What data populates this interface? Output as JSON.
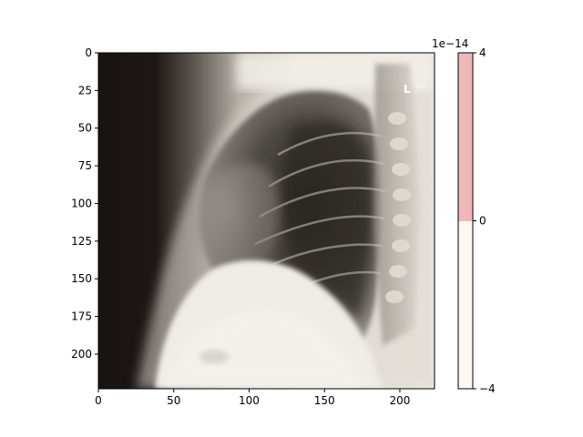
{
  "image": {
    "subject": "lateral chest x-ray",
    "overlay_marker": "L"
  },
  "axes": {
    "xlim": [
      0,
      223
    ],
    "ylim": [
      0,
      223
    ],
    "x_ticks": [
      {
        "value": 0,
        "label": "0"
      },
      {
        "value": 50,
        "label": "50"
      },
      {
        "value": 100,
        "label": "100"
      },
      {
        "value": 150,
        "label": "150"
      },
      {
        "value": 200,
        "label": "200"
      }
    ],
    "y_ticks": [
      {
        "value": 0,
        "label": "0"
      },
      {
        "value": 25,
        "label": "25"
      },
      {
        "value": 50,
        "label": "50"
      },
      {
        "value": 75,
        "label": "75"
      },
      {
        "value": 100,
        "label": "100"
      },
      {
        "value": 125,
        "label": "125"
      },
      {
        "value": 150,
        "label": "150"
      },
      {
        "value": 175,
        "label": "175"
      },
      {
        "value": 200,
        "label": "200"
      }
    ]
  },
  "colorbar": {
    "range": [
      -4,
      4
    ],
    "offset_label": "1e−14",
    "ticks": [
      {
        "value": 4,
        "label": "4"
      },
      {
        "value": 0,
        "label": "0"
      },
      {
        "value": -4,
        "label": "−4"
      }
    ],
    "colors": {
      "upper": "#efb8b8",
      "lower": "#fdf6f3"
    }
  },
  "colors": {
    "dark": "#181310",
    "bright": "#f2efe9"
  }
}
